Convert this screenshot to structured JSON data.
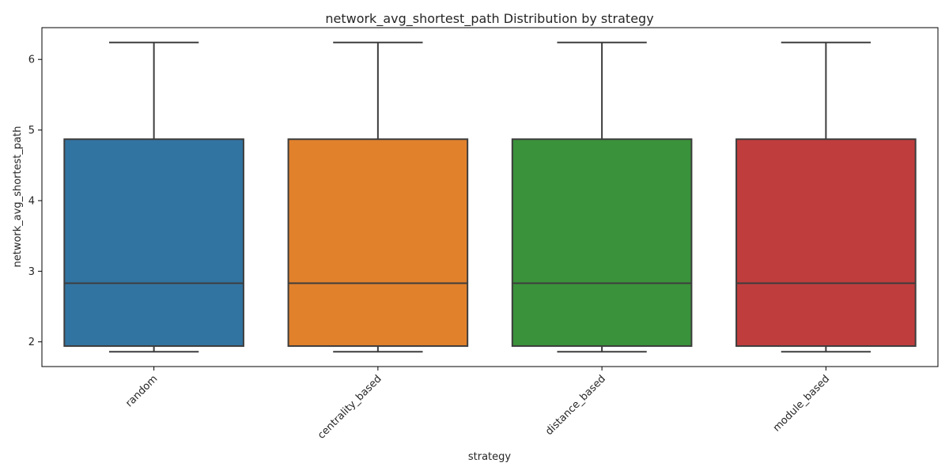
{
  "chart_data": {
    "type": "box",
    "title": "network_avg_shortest_path Distribution by strategy",
    "xlabel": "strategy",
    "ylabel": "network_avg_shortest_path",
    "ylim": [
      1.65,
      6.45
    ],
    "yticks": [
      2,
      3,
      4,
      5,
      6
    ],
    "ytick_labels": [
      "2",
      "3",
      "4",
      "5",
      "6"
    ],
    "grid": false,
    "legend": "none",
    "categories": [
      "random",
      "centrality_based",
      "distance_based",
      "module_based"
    ],
    "boxes": [
      {
        "category": "random",
        "whisker_low": 1.86,
        "q1": 1.94,
        "median": 2.83,
        "q3": 4.87,
        "whisker_high": 6.24,
        "color": "#3274a1"
      },
      {
        "category": "centrality_based",
        "whisker_low": 1.86,
        "q1": 1.94,
        "median": 2.83,
        "q3": 4.87,
        "whisker_high": 6.24,
        "color": "#e1812c"
      },
      {
        "category": "distance_based",
        "whisker_low": 1.86,
        "q1": 1.94,
        "median": 2.83,
        "q3": 4.87,
        "whisker_high": 6.24,
        "color": "#3a923a"
      },
      {
        "category": "module_based",
        "whisker_low": 1.86,
        "q1": 1.94,
        "median": 2.83,
        "q3": 4.87,
        "whisker_high": 6.24,
        "color": "#c03d3e"
      }
    ],
    "line_color": "#3d3d3d"
  }
}
